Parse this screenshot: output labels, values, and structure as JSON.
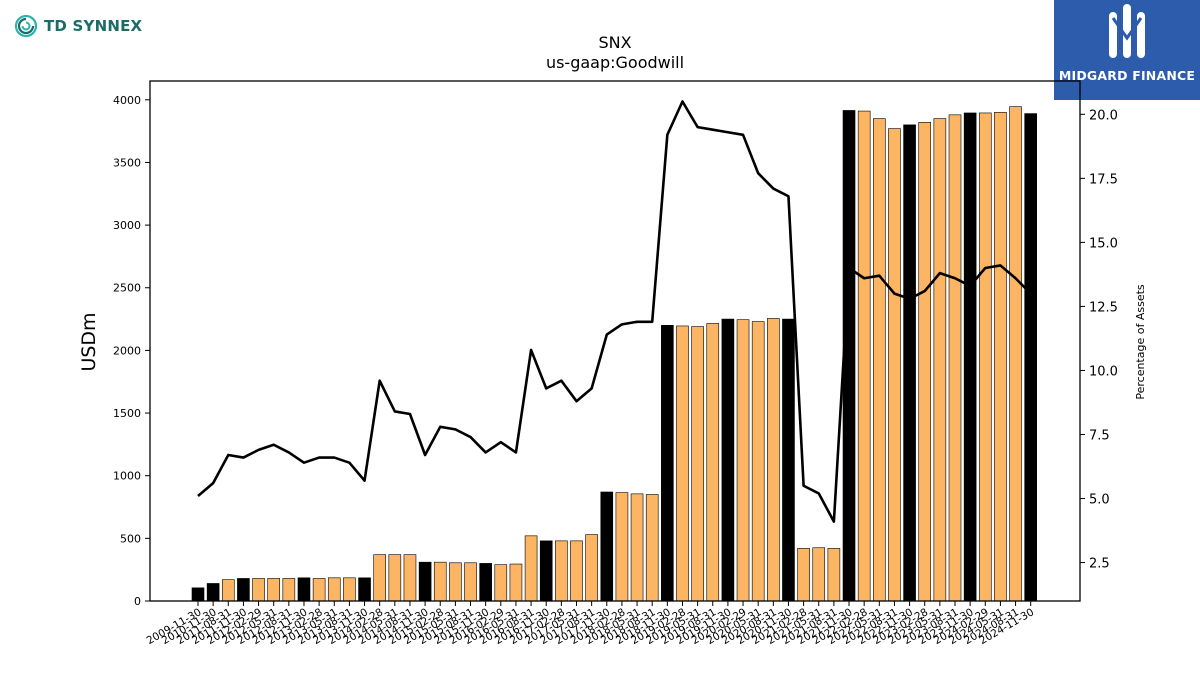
{
  "brand": {
    "name": "TD SYNNEX",
    "logo_icon": "td-synnex-swirl-icon",
    "color": "#1c6b66"
  },
  "badge": {
    "text": "MIDGARD FINANCE",
    "icon": "midgard-m-icon",
    "background": "#2d5cad"
  },
  "chart_data": {
    "type": "bar",
    "title": "SNX",
    "subtitle": "us-gaap:Goodwill",
    "ylabel": "USDm",
    "y2label": "Percentage of Assets",
    "ylim": [
      0,
      4150
    ],
    "y2lim": [
      1.0,
      21.3
    ],
    "yticks": [
      0,
      500,
      1000,
      1500,
      2000,
      2500,
      3000,
      3500,
      4000
    ],
    "y2ticks": [
      2.5,
      5.0,
      7.5,
      10.0,
      12.5,
      15.0,
      17.5,
      20.0
    ],
    "bar_colors": {
      "annual": "#000000",
      "quarterly": "#fbb563"
    },
    "categories": [
      "2009-11-30",
      "2010-11-30",
      "2011-08-31",
      "2011-11-30",
      "2012-02-29",
      "2012-05-31",
      "2012-08-31",
      "2012-11-30",
      "2013-02-28",
      "2013-05-31",
      "2013-08-31",
      "2013-11-30",
      "2014-02-28",
      "2014-05-31",
      "2014-08-31",
      "2014-11-30",
      "2015-02-28",
      "2015-05-31",
      "2015-08-31",
      "2015-11-30",
      "2016-02-29",
      "2016-05-31",
      "2016-08-31",
      "2016-11-30",
      "2017-02-28",
      "2017-05-31",
      "2017-08-31",
      "2017-11-30",
      "2018-02-28",
      "2018-05-31",
      "2018-08-31",
      "2018-11-30",
      "2019-02-28",
      "2019-05-31",
      "2019-08-31",
      "2019-11-30",
      "2020-02-29",
      "2020-05-31",
      "2020-08-31",
      "2020-11-30",
      "2021-02-28",
      "2021-05-31",
      "2021-08-31",
      "2021-11-30",
      "2022-02-28",
      "2022-05-31",
      "2022-08-31",
      "2022-11-30",
      "2023-02-28",
      "2023-05-31",
      "2023-08-31",
      "2023-11-30",
      "2024-02-29",
      "2024-05-31",
      "2024-08-31",
      "2024-11-30"
    ],
    "visible_xtick_labels": [
      "2009-11-30",
      "2010-11-30",
      "2011-08-31",
      "2011-11-30",
      "2012-02-29",
      "2012-05-31",
      "2012-08-31",
      "2012-11-30",
      "2013-02-28",
      "2013-05-31",
      "2013-08-31",
      "2013-11-30",
      "2014-02-28",
      "2014-05-31",
      "2014-08-31",
      "2014-11-30",
      "2015-02-28",
      "2015-05-31",
      "2015-08-31",
      "2015-11-30",
      "2016-02-29",
      "2016-05-31",
      "2016-08-31",
      "2016-11-30",
      "2017-02-28",
      "2017-05-31",
      "2017-08-31",
      "2017-11-30",
      "2018-02-28",
      "2018-05-31",
      "2018-08-31",
      "2018-11-30",
      "2019-02-28",
      "2019-05-31",
      "2019-08-31",
      "2019-11-30",
      "2020-02-29",
      "2020-05-31",
      "2020-08-31",
      "2020-11-30",
      "2021-02-28",
      "2021-05-31",
      "2021-08-31",
      "2021-11-30",
      "2022-02-28",
      "2022-05-31",
      "2022-08-31",
      "2022-11-30",
      "2023-02-28",
      "2023-05-31",
      "2023-08-31",
      "2023-11-30",
      "2024-02-29",
      "2024-05-31",
      "2024-08-31",
      "2024-11-30"
    ],
    "annual": [
      true,
      true,
      false,
      true,
      false,
      false,
      false,
      true,
      false,
      false,
      false,
      true,
      false,
      false,
      false,
      true,
      false,
      false,
      false,
      true,
      false,
      false,
      false,
      true,
      false,
      false,
      false,
      true,
      false,
      false,
      false,
      true,
      false,
      false,
      false,
      true,
      false,
      false,
      false,
      true,
      false,
      false,
      false,
      true,
      false,
      false,
      false,
      true,
      false,
      false,
      false,
      true,
      false,
      false,
      false,
      true
    ],
    "series": [
      {
        "name": "Goodwill",
        "type": "bar",
        "axis": "left",
        "values": [
          105,
          140,
          170,
          180,
          180,
          180,
          180,
          185,
          180,
          185,
          185,
          185,
          370,
          370,
          370,
          310,
          310,
          305,
          305,
          300,
          290,
          295,
          520,
          480,
          480,
          480,
          530,
          870,
          865,
          855,
          850,
          2200,
          2195,
          2190,
          2215,
          2250,
          2245,
          2230,
          2255,
          2250,
          420,
          425,
          420,
          3915,
          3910,
          3850,
          3770,
          3800,
          3820,
          3850,
          3880,
          3895,
          3895,
          3900,
          3945,
          3890
        ]
      },
      {
        "name": "Percentage of Assets",
        "type": "line",
        "axis": "right",
        "values": [
          5.1,
          5.6,
          6.7,
          6.6,
          6.9,
          7.1,
          6.8,
          6.4,
          6.6,
          6.6,
          6.4,
          5.7,
          9.6,
          8.4,
          8.3,
          6.7,
          7.8,
          7.7,
          7.4,
          6.8,
          7.2,
          6.8,
          10.8,
          9.3,
          9.6,
          8.8,
          9.3,
          11.4,
          11.8,
          11.9,
          11.9,
          19.2,
          20.5,
          19.5,
          19.4,
          19.3,
          19.2,
          17.7,
          17.1,
          16.8,
          5.5,
          5.2,
          4.1,
          14.0,
          13.6,
          13.7,
          13.0,
          12.8,
          13.1,
          13.8,
          13.6,
          13.3,
          14.0,
          14.1,
          13.6,
          13.0
        ]
      }
    ]
  }
}
